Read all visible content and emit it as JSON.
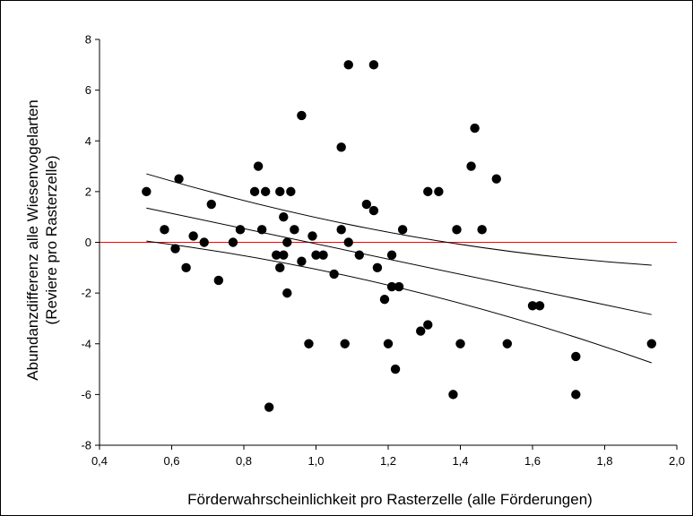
{
  "chart_data": {
    "type": "scatter",
    "title": "",
    "xlabel": "Förderwahrscheinlichkeit pro Rasterzelle (alle Förderungen)",
    "ylabel_lines": [
      "Abundanzdifferenz alle Wiesenvogelarten",
      "(Reviere pro Rasterzelle)"
    ],
    "xlim": [
      0.4,
      2.0
    ],
    "ylim": [
      -8,
      8
    ],
    "x_ticks": [
      0.4,
      0.6,
      0.8,
      1.0,
      1.2,
      1.4,
      1.6,
      1.8,
      2.0
    ],
    "x_tick_labels": [
      "0,4",
      "0,6",
      "0,8",
      "1,0",
      "1,2",
      "1,4",
      "1,6",
      "1,8",
      "2,0"
    ],
    "y_ticks": [
      -8,
      -6,
      -4,
      -2,
      0,
      2,
      4,
      6,
      8
    ],
    "y_tick_labels": [
      "-8",
      "-6",
      "-4",
      "-2",
      "0",
      "2",
      "4",
      "6",
      "8"
    ],
    "grid": false,
    "legend": "none",
    "point_color": "#000000",
    "reference_line": {
      "y": 0,
      "color": "#ff0000"
    },
    "regression": {
      "x_start": 0.53,
      "x_end": 1.93,
      "fit": [
        1.35,
        -2.85
      ],
      "upper_ci": [
        2.7,
        -0.9
      ],
      "lower_ci": [
        0.05,
        -4.75
      ],
      "color": "#000000"
    },
    "points": [
      [
        0.53,
        2.0
      ],
      [
        0.58,
        0.5
      ],
      [
        0.61,
        -0.25
      ],
      [
        0.62,
        2.5
      ],
      [
        0.64,
        -1.0
      ],
      [
        0.66,
        0.25
      ],
      [
        0.69,
        0.0
      ],
      [
        0.71,
        1.5
      ],
      [
        0.73,
        -1.5
      ],
      [
        0.77,
        0.0
      ],
      [
        0.79,
        0.5
      ],
      [
        0.83,
        2.0
      ],
      [
        0.84,
        3.0
      ],
      [
        0.85,
        0.5
      ],
      [
        0.86,
        2.0
      ],
      [
        0.87,
        -6.5
      ],
      [
        0.89,
        -0.5
      ],
      [
        0.9,
        -1.0
      ],
      [
        0.9,
        2.0
      ],
      [
        0.91,
        -0.5
      ],
      [
        0.91,
        1.0
      ],
      [
        0.92,
        -2.0
      ],
      [
        0.92,
        0.0
      ],
      [
        0.93,
        2.0
      ],
      [
        0.94,
        0.5
      ],
      [
        0.96,
        5.0
      ],
      [
        0.96,
        -0.75
      ],
      [
        0.98,
        -4.0
      ],
      [
        0.99,
        0.25
      ],
      [
        1.0,
        -0.5
      ],
      [
        1.02,
        -0.5
      ],
      [
        1.05,
        -1.25
      ],
      [
        1.07,
        3.75
      ],
      [
        1.07,
        0.5
      ],
      [
        1.08,
        -4.0
      ],
      [
        1.09,
        0.0
      ],
      [
        1.09,
        7.0
      ],
      [
        1.12,
        -0.5
      ],
      [
        1.14,
        1.5
      ],
      [
        1.16,
        1.25
      ],
      [
        1.16,
        7.0
      ],
      [
        1.17,
        -1.0
      ],
      [
        1.19,
        -2.25
      ],
      [
        1.2,
        -4.0
      ],
      [
        1.21,
        -1.75
      ],
      [
        1.21,
        -0.5
      ],
      [
        1.22,
        -5.0
      ],
      [
        1.23,
        -1.75
      ],
      [
        1.24,
        0.5
      ],
      [
        1.29,
        -3.5
      ],
      [
        1.31,
        -3.25
      ],
      [
        1.31,
        2.0
      ],
      [
        1.34,
        2.0
      ],
      [
        1.38,
        -6.0
      ],
      [
        1.39,
        0.5
      ],
      [
        1.4,
        -4.0
      ],
      [
        1.43,
        3.0
      ],
      [
        1.44,
        4.5
      ],
      [
        1.46,
        0.5
      ],
      [
        1.5,
        2.5
      ],
      [
        1.53,
        -4.0
      ],
      [
        1.6,
        -2.5
      ],
      [
        1.62,
        -2.5
      ],
      [
        1.72,
        -4.5
      ],
      [
        1.72,
        -6.0
      ],
      [
        1.93,
        -4.0
      ]
    ]
  }
}
